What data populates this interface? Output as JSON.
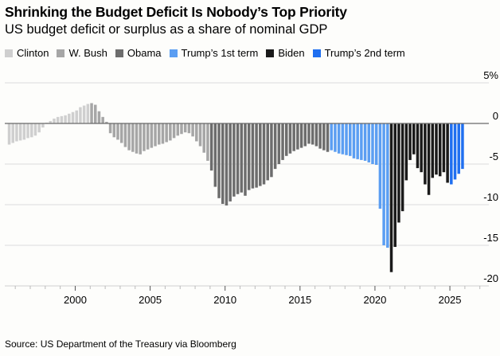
{
  "chart_data": {
    "type": "bar",
    "title": "Shrinking the Budget Deficit Is Nobody’s Top Priority",
    "subtitle": "US budget deficit or surplus as a share of nominal GDP",
    "source": "Source: US Department of the Treasury via Bloomberg",
    "ylim": [
      -20,
      5
    ],
    "xlim": [
      1995.3,
      2027.6
    ],
    "y_ticks": [
      {
        "v": 5,
        "label": "5%"
      },
      {
        "v": 0,
        "label": "0"
      },
      {
        "v": -5,
        "label": "-5"
      },
      {
        "v": -10,
        "label": "-10"
      },
      {
        "v": -15,
        "label": "-15"
      },
      {
        "v": -20,
        "label": "-20"
      }
    ],
    "x_ticks": [
      {
        "v": 2000,
        "label": "2000"
      },
      {
        "v": 2005,
        "label": "2005"
      },
      {
        "v": 2010,
        "label": "2010"
      },
      {
        "v": 2015,
        "label": "2015"
      },
      {
        "v": 2020,
        "label": "2020"
      },
      {
        "v": 2025,
        "label": "2025"
      }
    ],
    "grid": true,
    "legend_position": "top-left",
    "series": [
      {
        "name": "Clinton",
        "color": "#cfcfcf",
        "x": [
          1995.5,
          1995.75,
          1996,
          1996.25,
          1996.5,
          1996.75,
          1997,
          1997.25,
          1997.5,
          1997.75,
          1998,
          1998.25,
          1998.5,
          1998.75,
          1999,
          1999.25,
          1999.5,
          1999.75,
          2000,
          2000.25,
          2000.5,
          2000.75
        ],
        "y": [
          -2.6,
          -2.4,
          -2.2,
          -2.1,
          -2.0,
          -1.8,
          -1.7,
          -1.5,
          -1.1,
          -0.5,
          0.1,
          0.3,
          0.6,
          0.8,
          0.9,
          1.0,
          1.2,
          1.4,
          1.6,
          2.0,
          2.2,
          2.4
        ]
      },
      {
        "name": "W. Bush",
        "color": "#a6a6a6",
        "x": [
          2001,
          2001.25,
          2001.5,
          2001.75,
          2002,
          2002.25,
          2002.5,
          2002.75,
          2003,
          2003.25,
          2003.5,
          2003.75,
          2004,
          2004.25,
          2004.5,
          2004.75,
          2005,
          2005.25,
          2005.5,
          2005.75,
          2006,
          2006.25,
          2006.5,
          2006.75,
          2007,
          2007.25,
          2007.5,
          2007.75,
          2008,
          2008.25,
          2008.5,
          2008.75
        ],
        "y": [
          2.5,
          2.3,
          1.5,
          0.8,
          0.2,
          -1.2,
          -1.7,
          -2.0,
          -2.4,
          -2.9,
          -3.3,
          -3.5,
          -3.7,
          -3.8,
          -3.4,
          -3.2,
          -3.0,
          -2.8,
          -2.6,
          -2.5,
          -2.3,
          -2.1,
          -1.8,
          -1.5,
          -1.3,
          -1.1,
          -1.2,
          -1.6,
          -2.2,
          -2.8,
          -3.6,
          -4.6
        ]
      },
      {
        "name": "Obama",
        "color": "#6d6d6d",
        "x": [
          2009,
          2009.25,
          2009.5,
          2009.75,
          2010,
          2010.25,
          2010.5,
          2010.75,
          2011,
          2011.25,
          2011.5,
          2011.75,
          2012,
          2012.25,
          2012.5,
          2012.75,
          2013,
          2013.25,
          2013.5,
          2013.75,
          2014,
          2014.25,
          2014.5,
          2014.75,
          2015,
          2015.25,
          2015.5,
          2015.75,
          2016,
          2016.25,
          2016.5,
          2016.75
        ],
        "y": [
          -5.8,
          -7.8,
          -9.2,
          -9.9,
          -10.1,
          -9.6,
          -9.0,
          -8.7,
          -8.5,
          -8.9,
          -8.2,
          -8.0,
          -7.9,
          -7.7,
          -7.5,
          -7.0,
          -6.6,
          -5.6,
          -5.0,
          -4.5,
          -4.0,
          -3.7,
          -3.4,
          -3.2,
          -3.0,
          -2.8,
          -2.5,
          -2.6,
          -2.8,
          -3.1,
          -3.3,
          -3.5
        ]
      },
      {
        "name": "Trump’s 1st term",
        "color": "#5b9ef2",
        "x": [
          2017,
          2017.25,
          2017.5,
          2017.75,
          2018,
          2018.25,
          2018.5,
          2018.75,
          2019,
          2019.25,
          2019.5,
          2019.75,
          2020,
          2020.25,
          2020.5,
          2020.75
        ],
        "y": [
          -3.3,
          -3.5,
          -3.7,
          -3.8,
          -3.9,
          -4.0,
          -4.3,
          -4.4,
          -4.5,
          -4.6,
          -4.8,
          -5.0,
          -5.1,
          -10.5,
          -15.0,
          -15.3
        ]
      },
      {
        "name": "Biden",
        "color": "#1a1a1a",
        "x": [
          2021,
          2021.25,
          2021.5,
          2021.75,
          2022,
          2022.25,
          2022.5,
          2022.75,
          2023,
          2023.25,
          2023.5,
          2023.75,
          2024,
          2024.25,
          2024.5,
          2024.75
        ],
        "y": [
          -18.3,
          -15.2,
          -12.2,
          -10.8,
          -7.0,
          -4.5,
          -3.8,
          -5.5,
          -6.0,
          -7.5,
          -8.8,
          -6.7,
          -6.3,
          -6.5,
          -6.0,
          -7.3
        ]
      },
      {
        "name": "Trump’s 2nd term",
        "color": "#1f6ff0",
        "x": [
          2025,
          2025.25,
          2025.5,
          2025.75
        ],
        "y": [
          -7.5,
          -6.9,
          -6.2,
          -5.6
        ]
      }
    ]
  }
}
